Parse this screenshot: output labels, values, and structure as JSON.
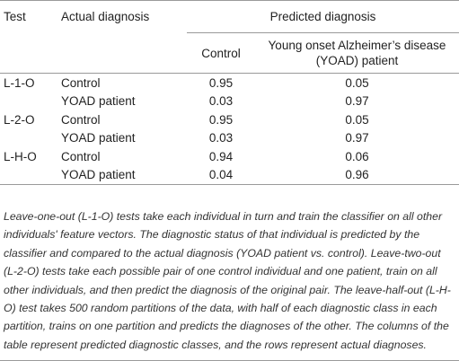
{
  "table": {
    "headers": {
      "test": "Test",
      "actual": "Actual diagnosis",
      "predicted": "Predicted diagnosis",
      "control": "Control",
      "yoad_line1": "Young onset Alzheimer’s disease",
      "yoad_line2": "(YOAD) patient"
    },
    "rows": [
      {
        "test": "L-1-O",
        "actual": "Control",
        "control": "0.95",
        "yoad": "0.05"
      },
      {
        "test": "",
        "actual": "YOAD patient",
        "control": "0.03",
        "yoad": "0.97"
      },
      {
        "test": "L-2-O",
        "actual": "Control",
        "control": "0.95",
        "yoad": "0.05"
      },
      {
        "test": "",
        "actual": "YOAD patient",
        "control": "0.03",
        "yoad": "0.97"
      },
      {
        "test": "L-H-O",
        "actual": "Control",
        "control": "0.94",
        "yoad": "0.06"
      },
      {
        "test": "",
        "actual": "YOAD patient",
        "control": "0.04",
        "yoad": "0.96"
      }
    ]
  },
  "caption": "Leave-one-out (L-1-O) tests take each individual in turn and train the classifier on all other individuals' feature vectors. The diagnostic status of that individual is predicted by the classifier and compared to the actual diagnosis (YOAD patient vs. control). Leave-two-out (L-2-O) tests take each possible pair of one control individual and one patient, train on all other individuals, and then predict the diagnosis of the original pair. The leave-half-out (L-H-O) test takes 500 random partitions of the data, with half of each diagnostic class in each partition, trains on one partition and predicts the diagnoses of the other. The columns of the table represent predicted diagnostic classes, and the rows represent actual diagnoses."
}
